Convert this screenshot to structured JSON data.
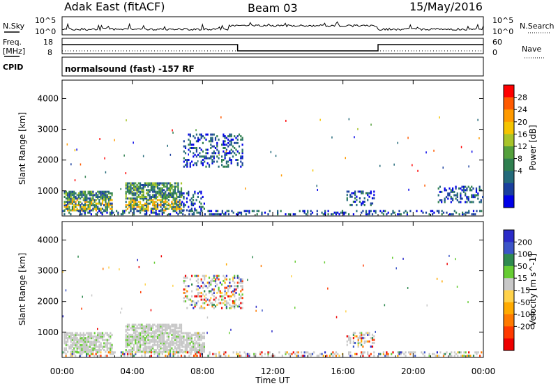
{
  "header": {
    "station": "Adak East (fitACF)",
    "beam": "Beam 03",
    "date": "15/May/2016"
  },
  "top_panel": {
    "left_label": "N.Sky",
    "left_ticks": [
      "10^5",
      "10^0"
    ],
    "right_label": "N.Search",
    "right_ticks": [
      "10^5",
      "10^0"
    ]
  },
  "freq_panel": {
    "left_label_1": "Freq.",
    "left_label_2": "[MHz]",
    "left_ticks": [
      "18",
      "8"
    ],
    "right_label": "Nave",
    "right_ticks": [
      "60",
      "0"
    ]
  },
  "cpid_panel": {
    "label": "CPID",
    "text": "normalsound (fast) -157 RF"
  },
  "chart_data": [
    {
      "type": "heatmap",
      "title": "Power",
      "ylabel": "Slant Range [km]",
      "xlabel": "Time UT",
      "ylim": [
        180,
        4600
      ],
      "yticks": [
        "1000",
        "2000",
        "3000",
        "4000"
      ],
      "xticks": [
        "00:00",
        "04:00",
        "08:00",
        "12:00",
        "16:00",
        "20:00",
        "00:00"
      ],
      "colorbar": {
        "label": "Power [dB]",
        "ticks": [
          "28",
          "24",
          "20",
          "16",
          "12",
          "8",
          "4"
        ],
        "colors": [
          "#ff0000",
          "#ff5a00",
          "#ff9a00",
          "#f5c400",
          "#a8c42a",
          "#54a03c",
          "#2f7f4f",
          "#246a7a",
          "#1a3f9e",
          "#0000e8"
        ]
      },
      "scatter_regions": [
        {
          "t0": 0.1,
          "t1": 2.8,
          "r0": 330,
          "r1": 950,
          "level": "high"
        },
        {
          "t0": 3.6,
          "t1": 6.8,
          "r0": 330,
          "r1": 1250,
          "level": "high"
        },
        {
          "t0": 6.8,
          "t1": 8.1,
          "r0": 330,
          "r1": 950,
          "level": "low"
        },
        {
          "t0": 6.9,
          "t1": 10.3,
          "r0": 1750,
          "r1": 2850,
          "level": "low"
        },
        {
          "t0": 16.2,
          "t1": 17.8,
          "r0": 500,
          "r1": 950,
          "level": "low"
        },
        {
          "t0": 21.4,
          "t1": 24.0,
          "r0": 600,
          "r1": 1150,
          "level": "low"
        },
        {
          "t0": 0.0,
          "t1": 24.0,
          "r0": 200,
          "r1": 330,
          "level": "low"
        }
      ]
    },
    {
      "type": "heatmap",
      "title": "Velocity",
      "ylabel": "Slant Range [km]",
      "xlabel": "Time UT",
      "ylim": [
        180,
        4600
      ],
      "yticks": [
        "1000",
        "2000",
        "3000",
        "4000"
      ],
      "xticks": [
        "00:00",
        "04:00",
        "08:00",
        "12:00",
        "16:00",
        "20:00",
        "00:00"
      ],
      "colorbar": {
        "label": "Velocity [m s^-1]",
        "ticks": [
          "200",
          "100",
          "50",
          "15",
          "-15",
          "-50",
          "-100",
          "-200"
        ],
        "colors": [
          "#2b2bc8",
          "#3c55c8",
          "#2f8a4f",
          "#66cc33",
          "#c8c8c8",
          "#ffd24a",
          "#ffaa00",
          "#ff7a00",
          "#ff3a00",
          "#ee0000"
        ]
      },
      "scatter_regions": [
        {
          "t0": 0.1,
          "t1": 2.8,
          "r0": 330,
          "r1": 950,
          "level": "ground"
        },
        {
          "t0": 3.6,
          "t1": 6.8,
          "r0": 330,
          "r1": 1250,
          "level": "ground"
        },
        {
          "t0": 6.8,
          "t1": 8.1,
          "r0": 330,
          "r1": 950,
          "level": "ground"
        },
        {
          "t0": 6.9,
          "t1": 10.3,
          "r0": 1750,
          "r1": 2850,
          "level": "mixed"
        },
        {
          "t0": 16.2,
          "t1": 17.8,
          "r0": 500,
          "r1": 950,
          "level": "mixed"
        },
        {
          "t0": 0.0,
          "t1": 24.0,
          "r0": 200,
          "r1": 330,
          "level": "mixed"
        }
      ]
    }
  ]
}
